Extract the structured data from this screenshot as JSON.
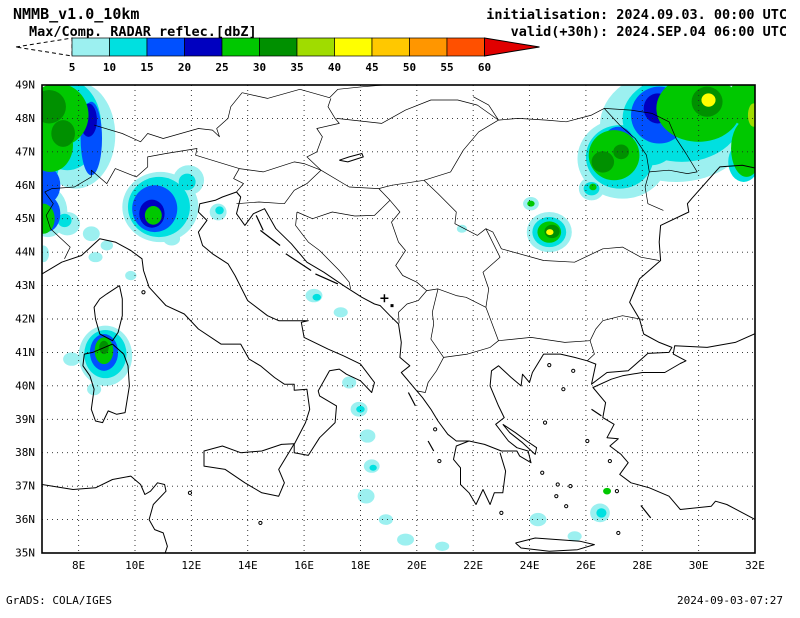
{
  "header": {
    "model": "NMMB_v1.0_10km",
    "product": "Max/Comp. RADAR reflec.[dbZ]",
    "init_label": "initialisation: 2024.09.03. 00:00 UTC",
    "valid_label": "valid(+30h): 2024.SEP.04 06:00 UTC"
  },
  "colorbar": {
    "unit": "dbZ",
    "tick_labels": [
      "5",
      "10",
      "15",
      "20",
      "25",
      "30",
      "35",
      "40",
      "45",
      "50",
      "55",
      "60"
    ],
    "below_min": {
      "color": "#ffffff",
      "style": "dashed-arrow"
    },
    "above_max": {
      "color": "#e00000",
      "style": "solid-arrow"
    },
    "segment_colors": [
      "#9cf0f0",
      "#00e0e0",
      "#0050ff",
      "#0000c0",
      "#00c800",
      "#009000",
      "#a0dc00",
      "#ffff00",
      "#ffc800",
      "#ff9600",
      "#ff5000"
    ]
  },
  "map": {
    "lat_ticks": [
      "49N",
      "48N",
      "47N",
      "46N",
      "45N",
      "44N",
      "43N",
      "42N",
      "41N",
      "40N",
      "39N",
      "38N",
      "37N",
      "36N",
      "35N"
    ],
    "lon_ticks": [
      "8E",
      "10E",
      "12E",
      "14E",
      "16E",
      "18E",
      "20E",
      "22E",
      "24E",
      "26E",
      "28E",
      "30E",
      "32E"
    ],
    "markers": [
      {
        "symbol": "plus",
        "lon": 18.85,
        "lat": 42.62
      },
      {
        "symbol": "dot",
        "lon": 19.12,
        "lat": 42.4
      }
    ],
    "radar_cells": [
      {
        "lon": 7.9,
        "lat": 47.5,
        "rx": 1.4,
        "ry": 1.6,
        "dbz": 5
      },
      {
        "lon": 7.6,
        "lat": 47.8,
        "rx": 1.2,
        "ry": 1.35,
        "dbz": 10
      },
      {
        "lon": 8.45,
        "lat": 47.4,
        "rx": 0.38,
        "ry": 1.1,
        "dbz": 15
      },
      {
        "lon": 8.35,
        "lat": 47.95,
        "rx": 0.3,
        "ry": 0.5,
        "dbz": 20
      },
      {
        "lon": 7.25,
        "lat": 48.1,
        "rx": 1.1,
        "ry": 0.95,
        "dbz": 25
      },
      {
        "lon": 7.0,
        "lat": 47.2,
        "rx": 0.8,
        "ry": 0.8,
        "dbz": 25
      },
      {
        "lon": 6.95,
        "lat": 48.35,
        "rx": 0.6,
        "ry": 0.5,
        "dbz": 30
      },
      {
        "lon": 7.45,
        "lat": 47.55,
        "rx": 0.42,
        "ry": 0.4,
        "dbz": 30
      },
      {
        "lon": 6.8,
        "lat": 46.6,
        "rx": 0.5,
        "ry": 0.6,
        "dbz": 10
      },
      {
        "lon": 6.85,
        "lat": 46.0,
        "rx": 0.5,
        "ry": 0.55,
        "dbz": 15
      },
      {
        "lon": 6.9,
        "lat": 45.2,
        "rx": 0.7,
        "ry": 0.75,
        "dbz": 5
      },
      {
        "lon": 6.85,
        "lat": 45.15,
        "rx": 0.5,
        "ry": 0.55,
        "dbz": 15
      },
      {
        "lon": 6.75,
        "lat": 45.0,
        "rx": 0.4,
        "ry": 0.45,
        "dbz": 25
      },
      {
        "lon": 6.75,
        "lat": 43.95,
        "rx": 0.2,
        "ry": 0.25,
        "dbz": 5
      },
      {
        "lon": 7.6,
        "lat": 44.85,
        "rx": 0.45,
        "ry": 0.35,
        "dbz": 5
      },
      {
        "lon": 7.5,
        "lat": 44.95,
        "rx": 0.25,
        "ry": 0.2,
        "dbz": 10
      },
      {
        "lon": 8.45,
        "lat": 44.55,
        "rx": 0.3,
        "ry": 0.22,
        "dbz": 5
      },
      {
        "lon": 9.0,
        "lat": 44.2,
        "rx": 0.22,
        "ry": 0.15,
        "dbz": 5
      },
      {
        "lon": 8.6,
        "lat": 43.85,
        "rx": 0.25,
        "ry": 0.15,
        "dbz": 5
      },
      {
        "lon": 9.85,
        "lat": 43.3,
        "rx": 0.2,
        "ry": 0.14,
        "dbz": 5
      },
      {
        "lon": 10.9,
        "lat": 45.35,
        "rx": 1.35,
        "ry": 1.05,
        "dbz": 5
      },
      {
        "lon": 10.85,
        "lat": 45.35,
        "rx": 1.1,
        "ry": 0.9,
        "dbz": 10
      },
      {
        "lon": 10.7,
        "lat": 45.3,
        "rx": 0.8,
        "ry": 0.7,
        "dbz": 15
      },
      {
        "lon": 10.6,
        "lat": 45.15,
        "rx": 0.45,
        "ry": 0.42,
        "dbz": 20
      },
      {
        "lon": 10.65,
        "lat": 45.1,
        "rx": 0.3,
        "ry": 0.28,
        "dbz": 25
      },
      {
        "lon": 11.9,
        "lat": 46.15,
        "rx": 0.55,
        "ry": 0.45,
        "dbz": 5
      },
      {
        "lon": 11.85,
        "lat": 46.1,
        "rx": 0.3,
        "ry": 0.25,
        "dbz": 10
      },
      {
        "lon": 11.3,
        "lat": 44.4,
        "rx": 0.3,
        "ry": 0.2,
        "dbz": 5
      },
      {
        "lon": 12.95,
        "lat": 45.2,
        "rx": 0.3,
        "ry": 0.25,
        "dbz": 5
      },
      {
        "lon": 13.0,
        "lat": 45.25,
        "rx": 0.15,
        "ry": 0.12,
        "dbz": 10
      },
      {
        "lon": 8.95,
        "lat": 40.9,
        "rx": 0.95,
        "ry": 0.9,
        "dbz": 5
      },
      {
        "lon": 8.95,
        "lat": 40.95,
        "rx": 0.75,
        "ry": 0.72,
        "dbz": 10
      },
      {
        "lon": 8.9,
        "lat": 41.0,
        "rx": 0.5,
        "ry": 0.55,
        "dbz": 15
      },
      {
        "lon": 8.9,
        "lat": 41.05,
        "rx": 0.33,
        "ry": 0.4,
        "dbz": 25
      },
      {
        "lon": 8.9,
        "lat": 41.15,
        "rx": 0.17,
        "ry": 0.2,
        "dbz": 30
      },
      {
        "lon": 7.75,
        "lat": 40.8,
        "rx": 0.3,
        "ry": 0.2,
        "dbz": 5
      },
      {
        "lon": 8.55,
        "lat": 39.9,
        "rx": 0.25,
        "ry": 0.18,
        "dbz": 5
      },
      {
        "lon": 16.35,
        "lat": 42.7,
        "rx": 0.3,
        "ry": 0.2,
        "dbz": 5
      },
      {
        "lon": 16.45,
        "lat": 42.65,
        "rx": 0.15,
        "ry": 0.1,
        "dbz": 10
      },
      {
        "lon": 17.3,
        "lat": 42.2,
        "rx": 0.25,
        "ry": 0.15,
        "dbz": 5
      },
      {
        "lon": 17.6,
        "lat": 40.1,
        "rx": 0.25,
        "ry": 0.18,
        "dbz": 5
      },
      {
        "lon": 17.95,
        "lat": 39.3,
        "rx": 0.3,
        "ry": 0.22,
        "dbz": 5
      },
      {
        "lon": 18.0,
        "lat": 39.3,
        "rx": 0.15,
        "ry": 0.1,
        "dbz": 10
      },
      {
        "lon": 18.25,
        "lat": 38.5,
        "rx": 0.28,
        "ry": 0.2,
        "dbz": 5
      },
      {
        "lon": 18.4,
        "lat": 37.6,
        "rx": 0.28,
        "ry": 0.2,
        "dbz": 5
      },
      {
        "lon": 18.45,
        "lat": 37.55,
        "rx": 0.13,
        "ry": 0.09,
        "dbz": 10
      },
      {
        "lon": 18.2,
        "lat": 36.7,
        "rx": 0.3,
        "ry": 0.22,
        "dbz": 5
      },
      {
        "lon": 18.9,
        "lat": 36.0,
        "rx": 0.25,
        "ry": 0.16,
        "dbz": 5
      },
      {
        "lon": 19.6,
        "lat": 35.4,
        "rx": 0.3,
        "ry": 0.18,
        "dbz": 5
      },
      {
        "lon": 20.9,
        "lat": 35.2,
        "rx": 0.25,
        "ry": 0.14,
        "dbz": 5
      },
      {
        "lon": 21.6,
        "lat": 44.7,
        "rx": 0.18,
        "ry": 0.12,
        "dbz": 5
      },
      {
        "lon": 24.3,
        "lat": 36.0,
        "rx": 0.3,
        "ry": 0.2,
        "dbz": 5
      },
      {
        "lon": 25.6,
        "lat": 35.5,
        "rx": 0.25,
        "ry": 0.15,
        "dbz": 5
      },
      {
        "lon": 26.5,
        "lat": 36.2,
        "rx": 0.35,
        "ry": 0.28,
        "dbz": 5
      },
      {
        "lon": 26.55,
        "lat": 36.2,
        "rx": 0.18,
        "ry": 0.14,
        "dbz": 10
      },
      {
        "lon": 26.75,
        "lat": 36.85,
        "rx": 0.14,
        "ry": 0.1,
        "dbz": 25
      },
      {
        "lon": 24.7,
        "lat": 44.6,
        "rx": 0.8,
        "ry": 0.6,
        "dbz": 5
      },
      {
        "lon": 24.7,
        "lat": 44.6,
        "rx": 0.6,
        "ry": 0.45,
        "dbz": 10
      },
      {
        "lon": 24.7,
        "lat": 44.6,
        "rx": 0.42,
        "ry": 0.32,
        "dbz": 25
      },
      {
        "lon": 24.8,
        "lat": 44.62,
        "rx": 0.27,
        "ry": 0.2,
        "dbz": 30
      },
      {
        "lon": 24.72,
        "lat": 44.6,
        "rx": 0.13,
        "ry": 0.09,
        "dbz": 40
      },
      {
        "lon": 24.05,
        "lat": 45.45,
        "rx": 0.28,
        "ry": 0.2,
        "dbz": 5
      },
      {
        "lon": 24.05,
        "lat": 45.45,
        "rx": 0.13,
        "ry": 0.09,
        "dbz": 25
      },
      {
        "lon": 29.2,
        "lat": 47.8,
        "rx": 2.7,
        "ry": 1.7,
        "dbz": 5
      },
      {
        "lon": 27.3,
        "lat": 46.8,
        "rx": 1.6,
        "ry": 1.2,
        "dbz": 5
      },
      {
        "lon": 29.4,
        "lat": 48.0,
        "rx": 2.1,
        "ry": 1.3,
        "dbz": 10
      },
      {
        "lon": 27.2,
        "lat": 46.85,
        "rx": 1.2,
        "ry": 0.95,
        "dbz": 10
      },
      {
        "lon": 28.3,
        "lat": 47.3,
        "rx": 0.9,
        "ry": 0.7,
        "dbz": 10
      },
      {
        "lon": 30.0,
        "lat": 48.3,
        "rx": 1.5,
        "ry": 1.0,
        "dbz": 25
      },
      {
        "lon": 27.0,
        "lat": 46.9,
        "rx": 0.9,
        "ry": 0.75,
        "dbz": 25
      },
      {
        "lon": 28.6,
        "lat": 48.1,
        "rx": 1.0,
        "ry": 0.85,
        "dbz": 15
      },
      {
        "lon": 28.55,
        "lat": 48.3,
        "rx": 0.5,
        "ry": 0.45,
        "dbz": 20
      },
      {
        "lon": 27.15,
        "lat": 47.25,
        "rx": 0.55,
        "ry": 0.5,
        "dbz": 15
      },
      {
        "lon": 26.6,
        "lat": 46.7,
        "rx": 0.4,
        "ry": 0.32,
        "dbz": 30
      },
      {
        "lon": 27.25,
        "lat": 47.0,
        "rx": 0.28,
        "ry": 0.22,
        "dbz": 30
      },
      {
        "lon": 30.3,
        "lat": 48.5,
        "rx": 0.55,
        "ry": 0.45,
        "dbz": 30
      },
      {
        "lon": 30.35,
        "lat": 48.55,
        "rx": 0.25,
        "ry": 0.2,
        "dbz": 40
      },
      {
        "lon": 31.6,
        "lat": 48.5,
        "rx": 0.55,
        "ry": 0.7,
        "dbz": 25
      },
      {
        "lon": 31.95,
        "lat": 48.1,
        "rx": 0.2,
        "ry": 0.35,
        "dbz": 35
      },
      {
        "lon": 31.7,
        "lat": 47.1,
        "rx": 0.55,
        "ry": 0.85,
        "dbz": 25
      },
      {
        "lon": 31.6,
        "lat": 46.7,
        "rx": 0.55,
        "ry": 0.6,
        "dbz": 10
      },
      {
        "lon": 26.2,
        "lat": 45.9,
        "rx": 0.45,
        "ry": 0.35,
        "dbz": 5
      },
      {
        "lon": 26.2,
        "lat": 45.9,
        "rx": 0.28,
        "ry": 0.2,
        "dbz": 10
      },
      {
        "lon": 26.25,
        "lat": 45.95,
        "rx": 0.13,
        "ry": 0.1,
        "dbz": 25
      }
    ]
  },
  "footer": {
    "left": "GrADS: COLA/IGES",
    "right": "2024-09-03-07:27"
  }
}
